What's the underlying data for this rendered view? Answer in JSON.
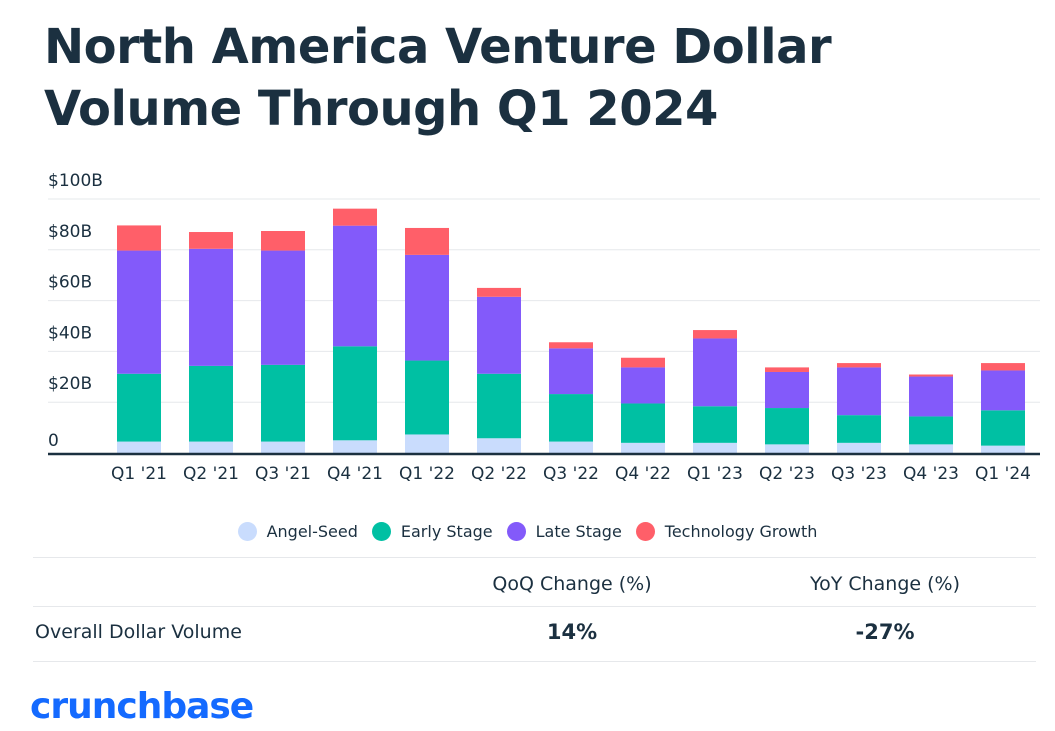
{
  "chart_data": {
    "type": "bar",
    "stacked": true,
    "title": "North America Venture Dollar Volume Through Q1 2024",
    "categories": [
      "Q1 '21",
      "Q2 '21",
      "Q3 '21",
      "Q4 '21",
      "Q1 '22",
      "Q2 '22",
      "Q3 '22",
      "Q4 '22",
      "Q1 '23",
      "Q2 '23",
      "Q3 '23",
      "Q4 '23",
      "Q1 '24"
    ],
    "series": [
      {
        "name": "Angel-Seed",
        "color": "#c9dcfd",
        "values": [
          4.5,
          4.5,
          4.5,
          5.0,
          7.3,
          5.8,
          4.5,
          4.0,
          4.0,
          3.4,
          4.0,
          3.4,
          2.9
        ]
      },
      {
        "name": "Early Stage",
        "color": "#00c0a3",
        "values": [
          26.7,
          29.8,
          30.2,
          37.0,
          29.1,
          25.4,
          18.7,
          15.5,
          14.4,
          14.3,
          10.9,
          11.0,
          13.9
        ]
      },
      {
        "name": "Late Stage",
        "color": "#835afa",
        "values": [
          48.5,
          46.1,
          45.0,
          47.5,
          41.6,
          30.3,
          18.0,
          14.2,
          26.7,
          14.2,
          18.8,
          15.7,
          15.7
        ]
      },
      {
        "name": "Technology Growth",
        "color": "#ff5f69",
        "values": [
          9.9,
          6.6,
          7.7,
          6.7,
          10.6,
          3.5,
          2.4,
          3.8,
          3.3,
          1.8,
          1.7,
          0.8,
          2.9
        ]
      }
    ],
    "ylim": [
      0,
      100
    ],
    "yticks": [
      0,
      20,
      40,
      60,
      80,
      100
    ],
    "ytick_labels": [
      "0",
      "$20B",
      "$40B",
      "$60B",
      "$80B",
      "$100B"
    ],
    "xlabel": "",
    "ylabel": "",
    "grid": true,
    "legend_position": "bottom"
  },
  "table": {
    "headers": [
      "QoQ Change (%)",
      "YoY Change (%)"
    ],
    "row_label": "Overall Dollar Volume",
    "values": [
      "14%",
      "-27%"
    ]
  },
  "logo": "crunchbase"
}
